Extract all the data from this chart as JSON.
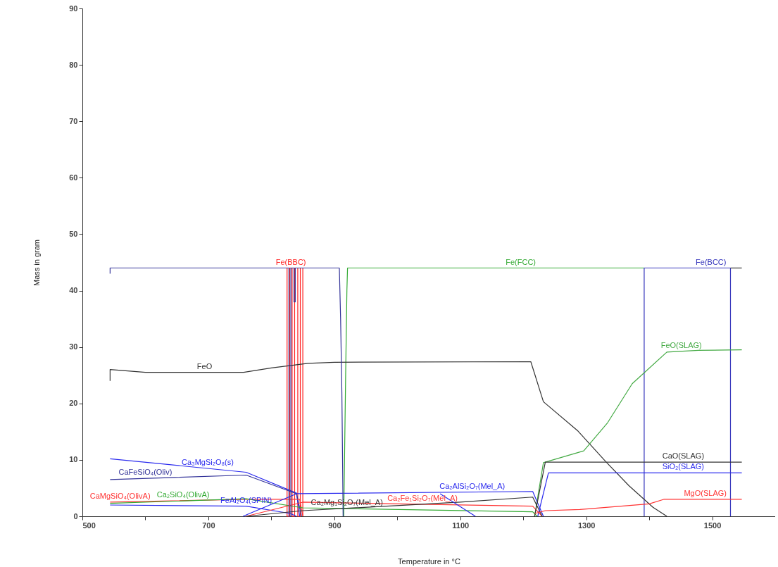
{
  "chart_data": {
    "type": "line",
    "xlabel": "Temperature in °C",
    "ylabel": "Mass in gram",
    "xlim": [
      500,
      1600
    ],
    "xticks": [
      500,
      {
        "value": 600,
        "label": null
      },
      700,
      {
        "value": 800,
        "label": null
      },
      900,
      {
        "value": 1000,
        "label": null
      },
      1100,
      {
        "value": 1200,
        "label": null
      },
      1300,
      {
        "value": 1400,
        "label": null
      },
      1500,
      {
        "value": 1600,
        "label": null
      }
    ],
    "ylim": [
      0,
      90
    ],
    "yticks": [
      0,
      10,
      20,
      30,
      40,
      50,
      60,
      70,
      80,
      90
    ],
    "grid": false,
    "marker": "none",
    "line_style": "solid",
    "series": [
      {
        "color": "#ff2020",
        "x": [
          825,
          825,
          829,
          829,
          833,
          833,
          837,
          837,
          842,
          842,
          846,
          846,
          850,
          850
        ],
        "values": [
          44,
          0,
          0,
          44,
          44,
          0,
          0,
          44,
          44,
          0,
          0,
          44,
          44,
          0
        ]
      },
      {
        "color": "#33aa33",
        "x": [
          915,
          918,
          920,
          921,
          1000,
          1392
        ],
        "values": [
          0,
          25,
          40,
          44,
          44,
          44
        ]
      },
      {
        "color": "#3333bb",
        "x": [
          1392,
          1392,
          1529,
          1529
        ],
        "values": [
          0,
          44,
          44,
          0
        ]
      },
      {
        "color": "#333333",
        "x": [
          544,
          544,
          600,
          756,
          800,
          858,
          900,
          1212,
          1232,
          1287,
          1331,
          1368,
          1406,
          1428
        ],
        "values": [
          24,
          26,
          25.5,
          25.5,
          26.3,
          27.1,
          27.3,
          27.4,
          20.3,
          15.1,
          9.7,
          5.4,
          1.6,
          0
        ]
      },
      {
        "color": "#44aa44",
        "x": [
          1218,
          1232,
          1296,
          1334,
          1373,
          1428,
          1478,
          1547
        ],
        "values": [
          0,
          9.5,
          11.6,
          16.6,
          23.5,
          29.1,
          29.4,
          29.5
        ]
      },
      {
        "color": "#2a2aee",
        "x": [
          544,
          760,
          840,
          845
        ],
        "values": [
          10.2,
          7.8,
          4.1,
          0
        ]
      },
      {
        "color": "#333399",
        "x": [
          544,
          760,
          840,
          848
        ],
        "values": [
          6.5,
          7.3,
          4.0,
          0
        ]
      },
      {
        "color": "#ff3333",
        "x": [
          544,
          760,
          845,
          850
        ],
        "values": [
          2.5,
          3.0,
          3.0,
          0
        ]
      },
      {
        "color": "#33aa33",
        "x": [
          544,
          760,
          850,
          1215,
          1222
        ],
        "values": [
          2.3,
          3.1,
          1.5,
          0.8,
          0
        ]
      },
      {
        "color": "#2a2aee",
        "x": [
          544,
          760,
          830,
          840
        ],
        "values": [
          2.0,
          1.8,
          0.5,
          0
        ]
      },
      {
        "color": "#ff3333",
        "x": [
          760,
          850,
          1215,
          1230
        ],
        "values": [
          0,
          2.5,
          1.8,
          0
        ]
      },
      {
        "color": "#2a2aee",
        "x": [
          755,
          840,
          1215,
          1232
        ],
        "values": [
          0,
          4.0,
          4.4,
          0
        ]
      },
      {
        "color": "#333333",
        "x": [
          760,
          850,
          1100,
          1215,
          1230
        ],
        "values": [
          0,
          1.0,
          2.5,
          3.4,
          0
        ]
      },
      {
        "color": "#333333",
        "x": [
          1218,
          1235,
          1547
        ],
        "values": [
          0,
          9.6,
          9.6
        ]
      },
      {
        "color": "#2a2aee",
        "x": [
          1223,
          1240,
          1547
        ],
        "values": [
          0,
          7.7,
          7.7
        ]
      },
      {
        "color": "#ff3333",
        "x": [
          1218,
          1235,
          1290,
          1400,
          1423,
          1547
        ],
        "values": [
          0.5,
          1.0,
          1.2,
          2.2,
          3.0,
          3.0
        ]
      },
      {
        "color": "#333399",
        "x": [
          544,
          544,
          828,
          828,
          831,
          831,
          836,
          836,
          838,
          838,
          850,
          908,
          910,
          912,
          914
        ],
        "values": [
          43,
          44,
          44,
          0,
          0,
          44,
          44,
          38,
          38,
          44,
          44,
          44,
          35,
          22,
          0
        ]
      },
      {
        "color": "#333333",
        "x": [
          1529,
          1547
        ],
        "values": [
          44,
          44
        ]
      },
      {
        "color": "#2a2aee",
        "x": [
          1068,
          1124
        ],
        "values": [
          4,
          0
        ]
      }
    ],
    "annotations": [
      {
        "text": "Fe(BBC)",
        "x": 831,
        "y": 44
      },
      {
        "text": "Fe(FCC)",
        "x": 1196,
        "y": 44
      },
      {
        "text": "Fe(BCC)",
        "x": 1498,
        "y": 44
      },
      {
        "text": "FeO",
        "x": 694,
        "y": 25.5
      },
      {
        "text": "FeO(SLAG)",
        "x": 1451,
        "y": 29.2
      },
      {
        "text": "Ca₃MgSi₂O₈(s)",
        "x": 699,
        "y": 8.5
      },
      {
        "text": "CaFeSiO₄(Oliv)",
        "x": 600,
        "y": 6.7
      },
      {
        "text": "CaMgSiO₄(OlivA)",
        "x": 560,
        "y": 2.5
      },
      {
        "text": "Ca₂SiO₄(OlivA)",
        "x": 660,
        "y": 2.7
      },
      {
        "text": "FeAl₂O₄(SPIN)",
        "x": 760,
        "y": 1.8
      },
      {
        "text": "Ca₂Fe₁Si₂O₇(Mel_A)",
        "x": 1040,
        "y": 2.1
      },
      {
        "text": "Ca₂AlSi₂O₇(Mel_A)",
        "x": 1119,
        "y": 4.3
      },
      {
        "text": "Ca₂Mg₁Si₂O₇(Mel_A)",
        "x": 920,
        "y": 1.4
      },
      {
        "text": "CaO(SLAG)",
        "x": 1454,
        "y": 9.6
      },
      {
        "text": "SiO₂(SLAG)",
        "x": 1454,
        "y": 7.7
      },
      {
        "text": "MgO(SLAG)",
        "x": 1489,
        "y": 3.0
      }
    ]
  }
}
